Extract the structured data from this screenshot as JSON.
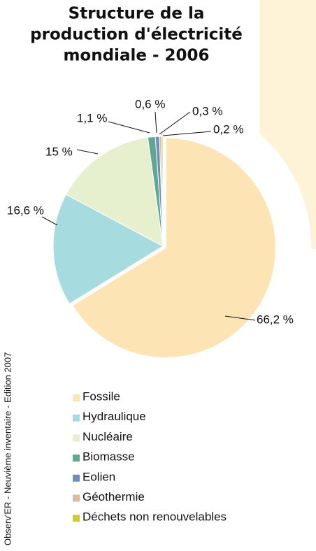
{
  "chart_data": {
    "type": "pie",
    "title": [
      "Structure de la",
      "production d'électricité",
      "mondiale - 2006"
    ],
    "source": "Observ'ER - Neuvième inventaire - Edition 2007",
    "categories": [
      "Fossile",
      "Hydraulique",
      "Nucléaire",
      "Biomasse",
      "Eolien",
      "Géothermie",
      "Déchets non renouvelables"
    ],
    "values": [
      66.2,
      16.6,
      15,
      1.1,
      0.6,
      0.3,
      0.2
    ],
    "value_labels": [
      "66,2 %",
      "16,6 %",
      "15 %",
      "1,1 %",
      "0,6 %",
      "0,3 %",
      "0,2 %"
    ],
    "colors": [
      "#fde4b5",
      "#a6dce0",
      "#e6f0cf",
      "#5fa790",
      "#6f8fb8",
      "#deb8a0",
      "#d4c83a"
    ]
  }
}
